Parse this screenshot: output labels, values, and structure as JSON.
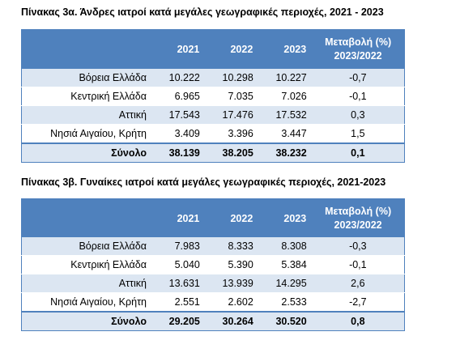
{
  "table_a": {
    "caption": "Πίνακας 3α. Άνδρες ιατροί κατά μεγάλες γεωγραφικές περιοχές, 2021 - 2023",
    "headers": {
      "y1": "2021",
      "y2": "2022",
      "y3": "2023",
      "chg_line1": "Μεταβολή (%)",
      "chg_line2": "2023/2022"
    },
    "rows": [
      {
        "region": "Βόρεια Ελλάδα",
        "y1": "10.222",
        "y2": "10.298",
        "y3": "10.227",
        "chg": "-0,7"
      },
      {
        "region": "Κεντρική Ελλάδα",
        "y1": "6.965",
        "y2": "7.035",
        "y3": "7.026",
        "chg": "-0,1"
      },
      {
        "region": "Αττική",
        "y1": "17.543",
        "y2": "17.476",
        "y3": "17.532",
        "chg": "0,3"
      },
      {
        "region": "Νησιά Αιγαίου, Κρήτη",
        "y1": "3.409",
        "y2": "3.396",
        "y3": "3.447",
        "chg": "1,5"
      }
    ],
    "total": {
      "region": "Σύνολο",
      "y1": "38.139",
      "y2": "38.205",
      "y3": "38.232",
      "chg": "0,1"
    }
  },
  "table_b": {
    "caption": "Πίνακας 3β. Γυναίκες ιατροί κατά μεγάλες γεωγραφικές περιοχές, 2021-2023",
    "headers": {
      "y1": "2021",
      "y2": "2022",
      "y3": "2023",
      "chg_line1": "Μεταβολή (%)",
      "chg_line2": "2023/2022"
    },
    "rows": [
      {
        "region": "Βόρεια Ελλάδα",
        "y1": "7.983",
        "y2": "8.333",
        "y3": "8.308",
        "chg": "-0,3"
      },
      {
        "region": "Κεντρική Ελλάδα",
        "y1": "5.040",
        "y2": "5.390",
        "y3": "5.384",
        "chg": "-0,1"
      },
      {
        "region": "Αττική",
        "y1": "13.631",
        "y2": "13.939",
        "y3": "14.295",
        "chg": "2,6"
      },
      {
        "region": "Νησιά Αιγαίου, Κρήτη",
        "y1": "2.551",
        "y2": "2.602",
        "y3": "2.533",
        "chg": "-2,7"
      }
    ],
    "total": {
      "region": "Σύνολο",
      "y1": "29.205",
      "y2": "30.264",
      "y3": "30.520",
      "chg": "0,8"
    }
  },
  "colors": {
    "header": "#4f81bd",
    "band": "#dce6f2"
  }
}
